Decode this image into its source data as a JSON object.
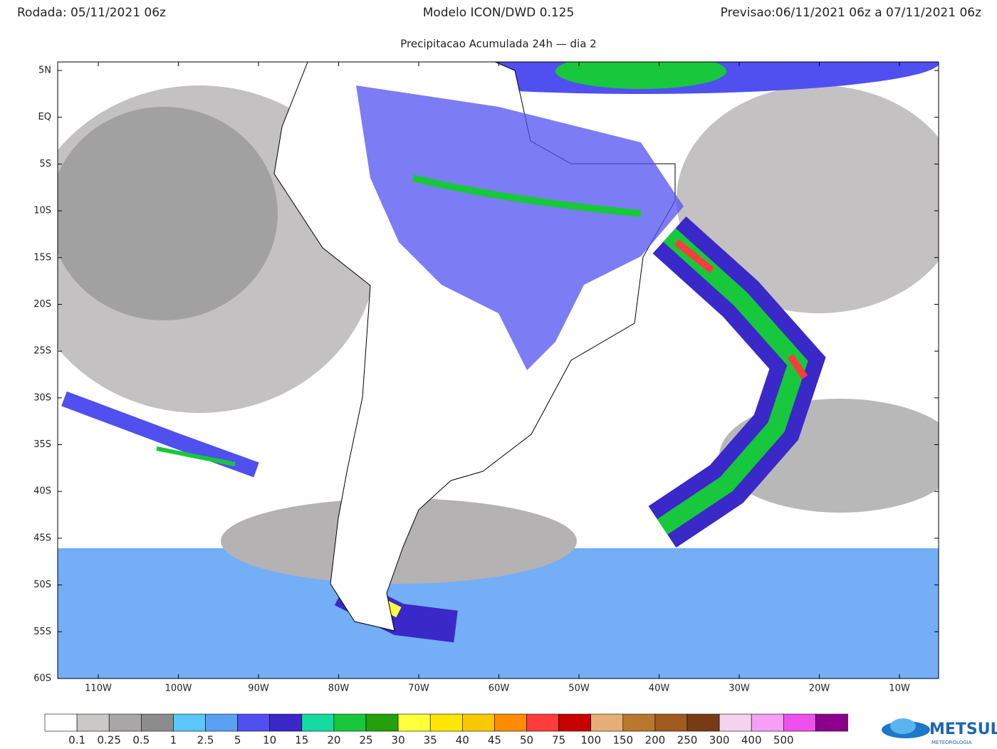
{
  "header": {
    "run": "Rodada: 05/11/2021 06z",
    "model": "Modelo ICON/DWD 0.125",
    "forecast": "Previsao:06/11/2021 06z a 07/11/2021 06z",
    "subtitle": "Precipitacao Acumulada 24h — dia 2"
  },
  "map": {
    "lat_labels": [
      "5N",
      "EQ",
      "5S",
      "10S",
      "15S",
      "20S",
      "25S",
      "30S",
      "35S",
      "40S",
      "45S",
      "50S",
      "55S",
      "60S"
    ],
    "lon_labels": [
      "110W",
      "100W",
      "90W",
      "80W",
      "70W",
      "60W",
      "50W",
      "40W",
      "30W",
      "20W",
      "10W"
    ]
  },
  "colorbar": {
    "colors": [
      "#ffffff",
      "#cbc8c8",
      "#a8a6a6",
      "#8c8c8c",
      "#5ac8fa",
      "#5aa0f5",
      "#5050f0",
      "#3a28c8",
      "#14dca0",
      "#18c83c",
      "#23a00a",
      "#ffff3c",
      "#ffe600",
      "#fac800",
      "#ff8c00",
      "#ff3c3c",
      "#c80000",
      "#e6af78",
      "#b9782d",
      "#a05a1e",
      "#783c14",
      "#f5d2f0",
      "#f5a0f5",
      "#ee50ee",
      "#8c008c"
    ],
    "labels": [
      "0.1",
      "0.25",
      "0.5",
      "1",
      "2.5",
      "5",
      "10",
      "15",
      "20",
      "25",
      "30",
      "35",
      "40",
      "45",
      "50",
      "75",
      "100",
      "150",
      "200",
      "250",
      "300",
      "400",
      "500"
    ]
  },
  "logo": {
    "name": "METSUL",
    "tagline": "METEOROLOGIA"
  }
}
